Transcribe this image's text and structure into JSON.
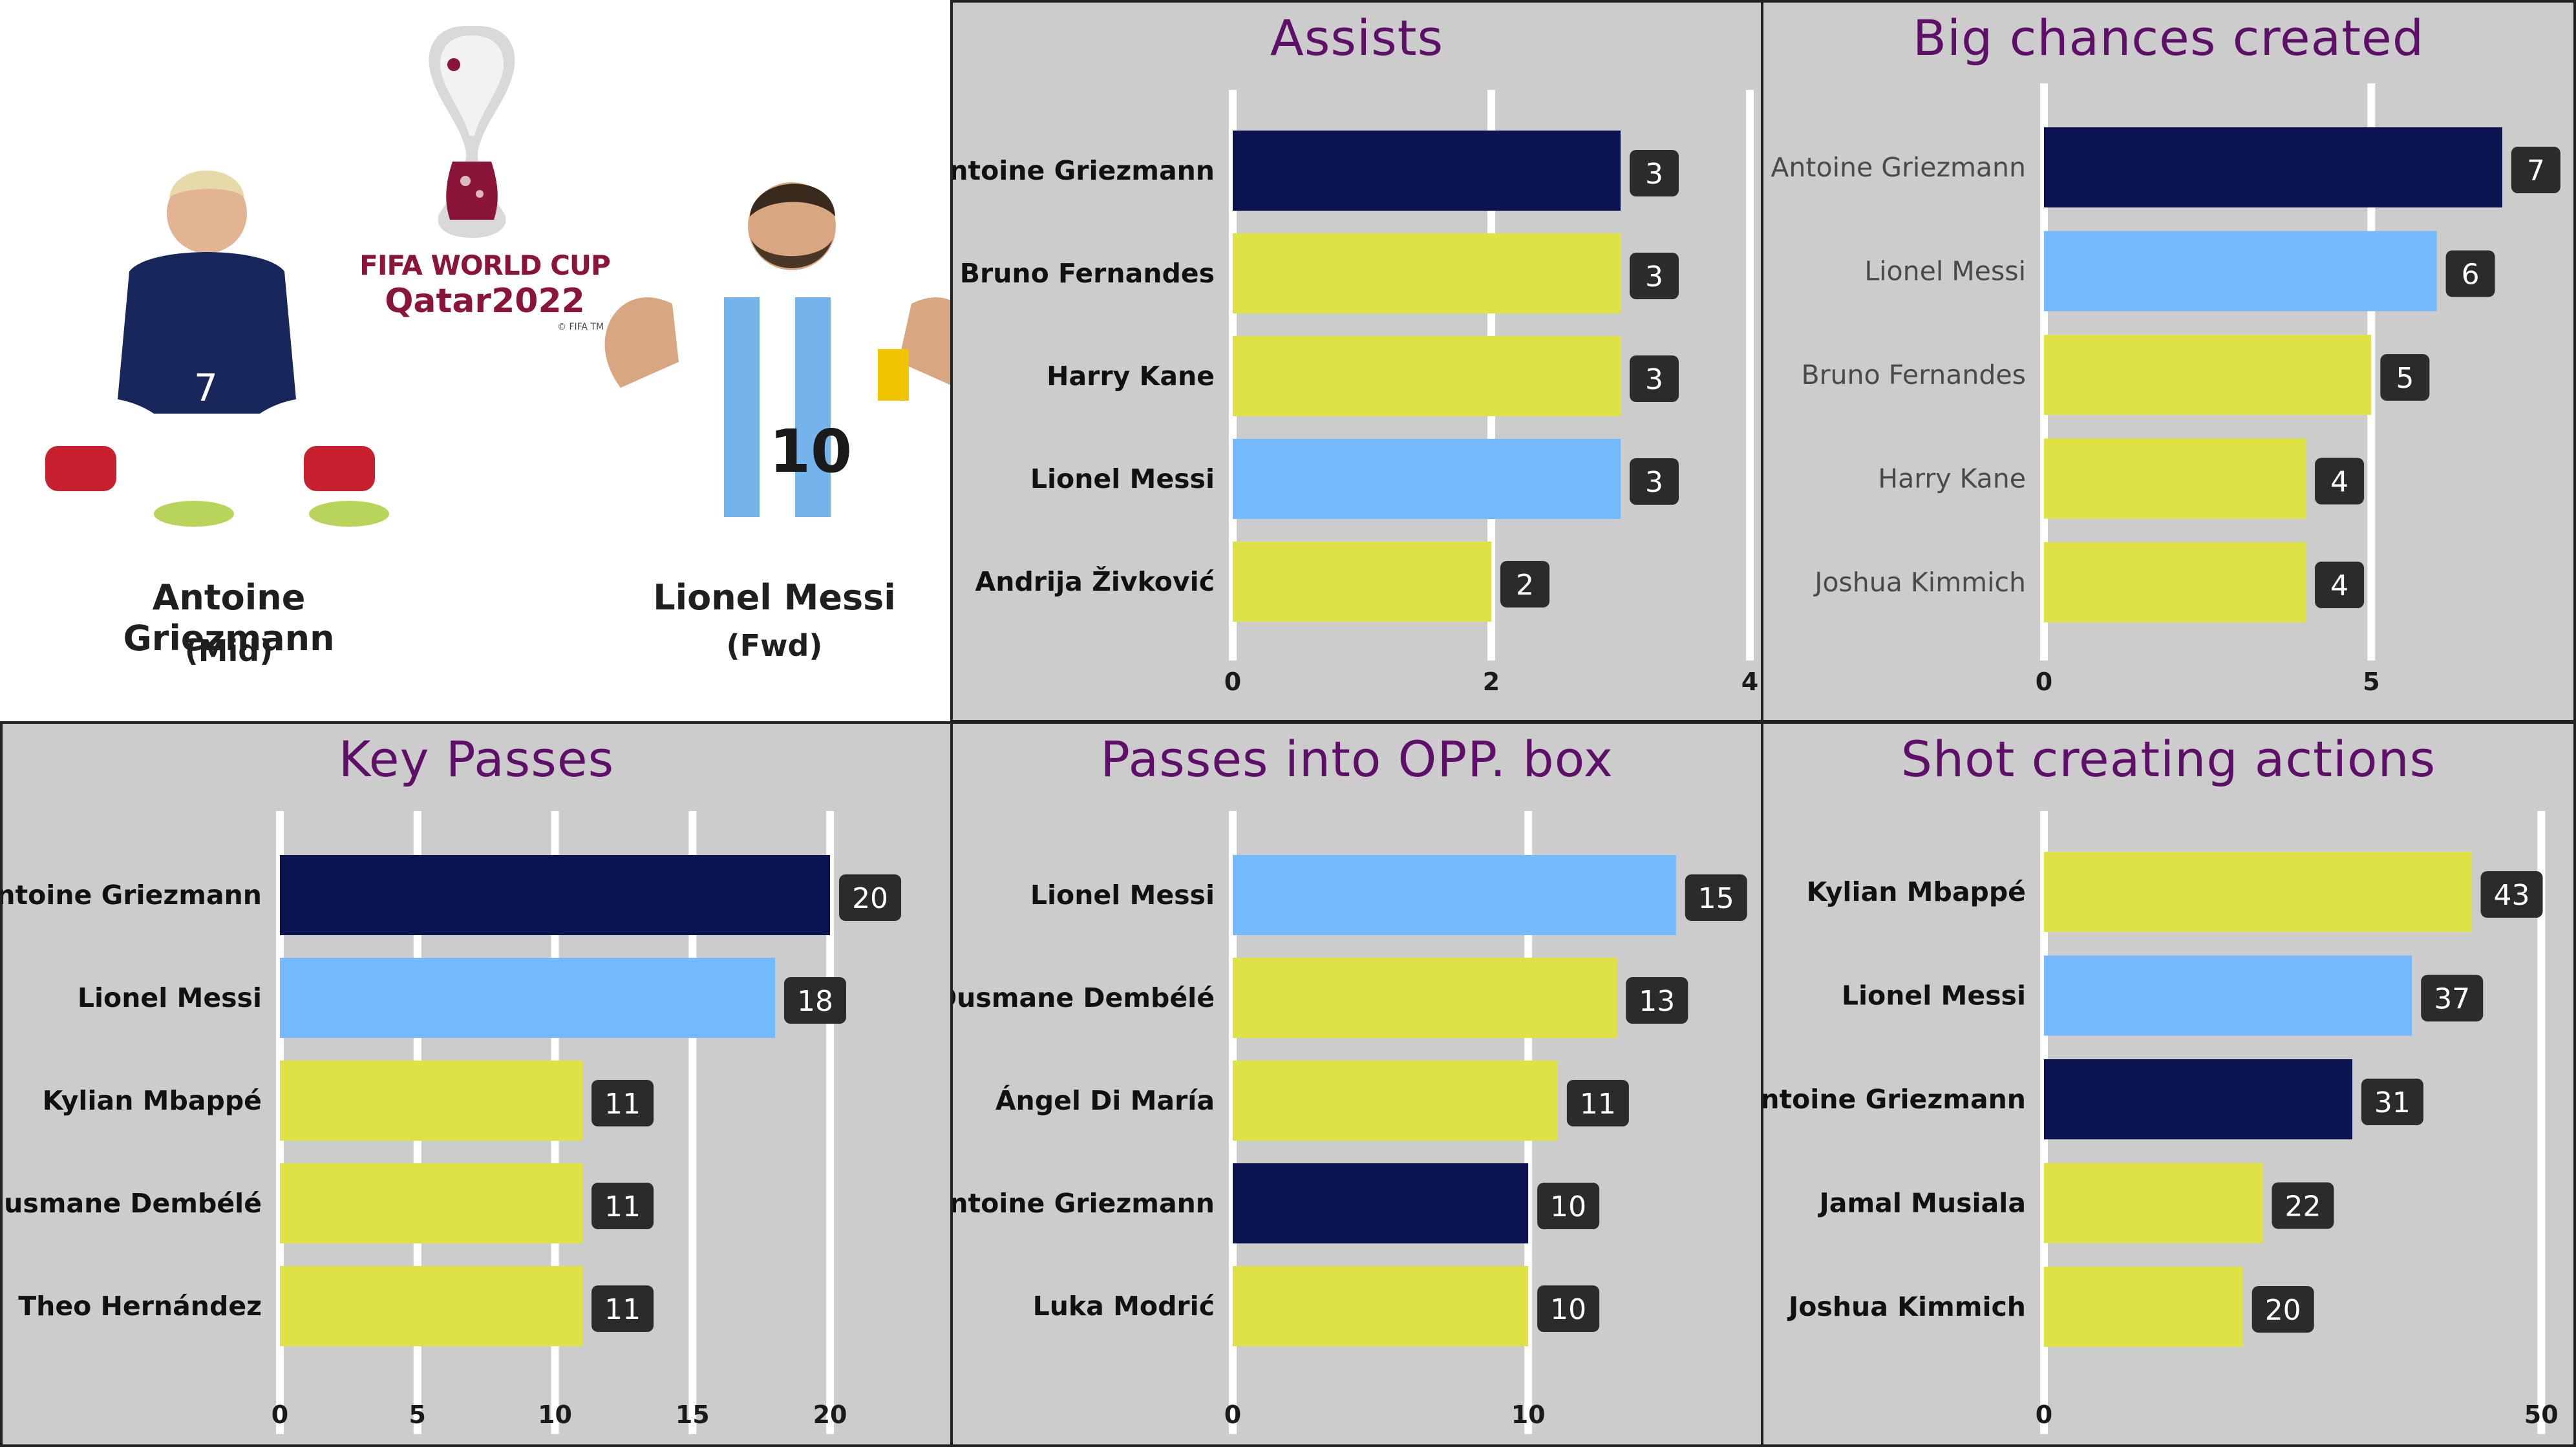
{
  "intro": {
    "logo_line1": "FIFA WORLD CUP",
    "logo_line2": "Qatar2022",
    "logo_tm": "© FIFA TM",
    "players": [
      {
        "name": "Antoine Griezmann",
        "position": "(Mid)",
        "kit_color": "#17275c",
        "number": "7"
      },
      {
        "name": "Lionel Messi",
        "position": "(Fwd)",
        "kit_color": "#74b4ea",
        "number": "10"
      }
    ]
  },
  "colors": {
    "griezmann": "#0b1350",
    "messi": "#73b9fb",
    "other": "#dee244",
    "panel_bg": "#cccccc",
    "title": "#5e0f67",
    "label_box": "#2b2b2b"
  },
  "chart_data": [
    {
      "type": "bar",
      "orientation": "horizontal",
      "title": "Assists",
      "categories": [
        "Antoine Griezmann",
        "Bruno Fernandes",
        "Harry Kane",
        "Lionel Messi",
        "Andrija Živković"
      ],
      "values": [
        3,
        3,
        3,
        3,
        2
      ],
      "bar_colors": [
        "griezmann",
        "other",
        "other",
        "messi",
        "other"
      ],
      "xlim": [
        0,
        4
      ],
      "xticks": [
        0,
        2,
        4
      ],
      "label_weight": "bold",
      "grid": true
    },
    {
      "type": "bar",
      "orientation": "horizontal",
      "title": "Big chances created",
      "categories": [
        "Antoine Griezmann",
        "Lionel Messi",
        "Bruno Fernandes",
        "Harry Kane",
        "Joshua Kimmich"
      ],
      "values": [
        7,
        6,
        5,
        4,
        4
      ],
      "bar_colors": [
        "griezmann",
        "messi",
        "other",
        "other",
        "other"
      ],
      "xlim": [
        0,
        7.9
      ],
      "xticks": [
        0,
        5
      ],
      "label_weight": "normal",
      "grid": true
    },
    {
      "type": "bar",
      "orientation": "horizontal",
      "title": "Key Passes",
      "categories": [
        "Antoine Griezmann",
        "Lionel Messi",
        "Kylian Mbappé",
        "Ousmane Dembélé",
        "Theo Hernández"
      ],
      "values": [
        20,
        18,
        11,
        11,
        11
      ],
      "bar_colors": [
        "griezmann",
        "messi",
        "other",
        "other",
        "other"
      ],
      "xlim": [
        0,
        23.5
      ],
      "xticks": [
        0,
        5,
        10,
        15,
        20
      ],
      "label_weight": "bold",
      "grid": true
    },
    {
      "type": "bar",
      "orientation": "horizontal",
      "title": "Passes into OPP. box",
      "categories": [
        "Lionel Messi",
        "Ousmane Dembélé",
        "Ángel Di María",
        "Antoine Griezmann",
        "Luka Modrić"
      ],
      "values": [
        15,
        13,
        11,
        10,
        10
      ],
      "bar_colors": [
        "messi",
        "other",
        "other",
        "griezmann",
        "other"
      ],
      "xlim": [
        0,
        17.5
      ],
      "xticks": [
        0,
        10
      ],
      "label_weight": "bold",
      "grid": true
    },
    {
      "type": "bar",
      "orientation": "horizontal",
      "title": "Shot creating actions",
      "categories": [
        "Kylian Mbappé",
        "Lionel Messi",
        "Antoine Griezmann",
        "Jamal Musiala",
        "Joshua Kimmich"
      ],
      "values": [
        43,
        37,
        31,
        22,
        20
      ],
      "bar_colors": [
        "other",
        "messi",
        "griezmann",
        "other",
        "other"
      ],
      "xlim": [
        0,
        52
      ],
      "xticks": [
        0,
        50
      ],
      "label_weight": "bold",
      "grid": true
    }
  ]
}
